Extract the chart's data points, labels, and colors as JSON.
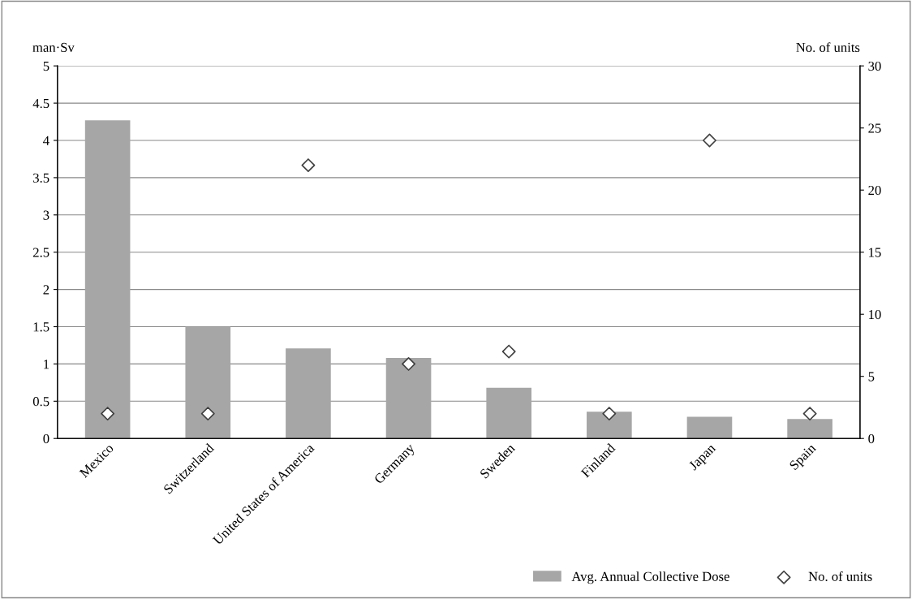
{
  "chart_data": {
    "type": "bar",
    "ylabel": "man·Sv",
    "y2label": "No. of units",
    "categories": [
      "Mexico",
      "Switzerland",
      "United States of America",
      "Germany",
      "Sweden",
      "Finland",
      "Japan",
      "Spain"
    ],
    "series": [
      {
        "name": "Avg. Annual Collective Dose",
        "color": "#a6a6a6",
        "values": [
          4.27,
          1.5,
          1.21,
          1.08,
          0.68,
          0.36,
          0.29,
          0.26
        ]
      },
      {
        "name": "No. of units",
        "type": "scatter",
        "axis": "y2",
        "marker": "diamond",
        "color": "#404040",
        "values": [
          2,
          2,
          22,
          6,
          7,
          2,
          24,
          2
        ]
      }
    ],
    "ylim": [
      0,
      5
    ],
    "yticks": [
      0,
      0.5,
      1,
      1.5,
      2,
      2.5,
      3,
      3.5,
      4,
      4.5,
      5
    ],
    "y2lim": [
      0,
      30
    ],
    "y2ticks": [
      0,
      5,
      10,
      15,
      20,
      25,
      30
    ],
    "grid": "y",
    "legend": "bottom right"
  }
}
